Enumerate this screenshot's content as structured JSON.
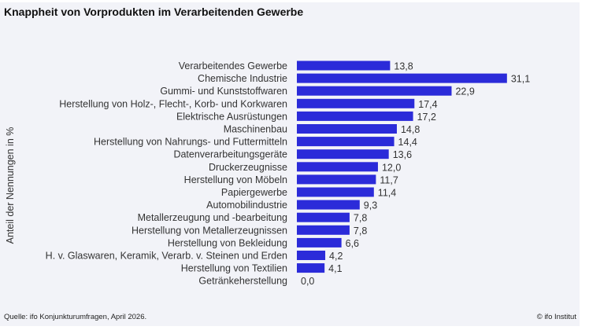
{
  "chart_data": {
    "type": "bar",
    "orientation": "horizontal",
    "title": "Knappheit von Vorprodukten im Verarbeitenden Gewerbe",
    "xlabel": "",
    "ylabel": "Anteil der Nennungen in %",
    "grid": false,
    "legend": "none",
    "bar_color": "#2b2bd9",
    "categories": [
      "Verarbeitendes Gewerbe",
      "Chemische Industrie",
      "Gummi- und Kunststoffwaren",
      "Herstellung von Holz-, Flecht-, Korb- und Korkwaren",
      "Elektrische Ausrüstungen",
      "Maschinenbau",
      "Herstellung von Nahrungs- und Futtermitteln",
      "Datenverarbeitungsgeräte",
      "Druckerzeugnisse",
      "Herstellung von Möbeln",
      "Papiergewerbe",
      "Automobilindustrie",
      "Metallerzeugung und -bearbeitung",
      "Herstellung von Metallerzeugnissen",
      "Herstellung von Bekleidung",
      "H. v. Glaswaren, Keramik, Verarb. v. Steinen und Erden",
      "Herstellung von Textilien",
      "Getränkeherstellung"
    ],
    "values": [
      13.8,
      31.1,
      22.9,
      17.4,
      17.2,
      14.8,
      14.4,
      13.6,
      12.0,
      11.7,
      11.4,
      9.3,
      7.8,
      7.8,
      6.6,
      4.2,
      4.1,
      0.0
    ],
    "value_labels": [
      "13,8",
      "31,1",
      "22,9",
      "17,4",
      "17,2",
      "14,8",
      "14,4",
      "13,6",
      "12,0",
      "11,7",
      "11,4",
      "9,3",
      "7,8",
      "7,8",
      "6,6",
      "4,2",
      "4,1",
      "0,0"
    ],
    "xlim": [
      0,
      31.1
    ]
  },
  "footer": {
    "source": "Quelle: ifo Konjunkturumfragen,  April 2026.",
    "copyright": "© ifo Institut"
  }
}
